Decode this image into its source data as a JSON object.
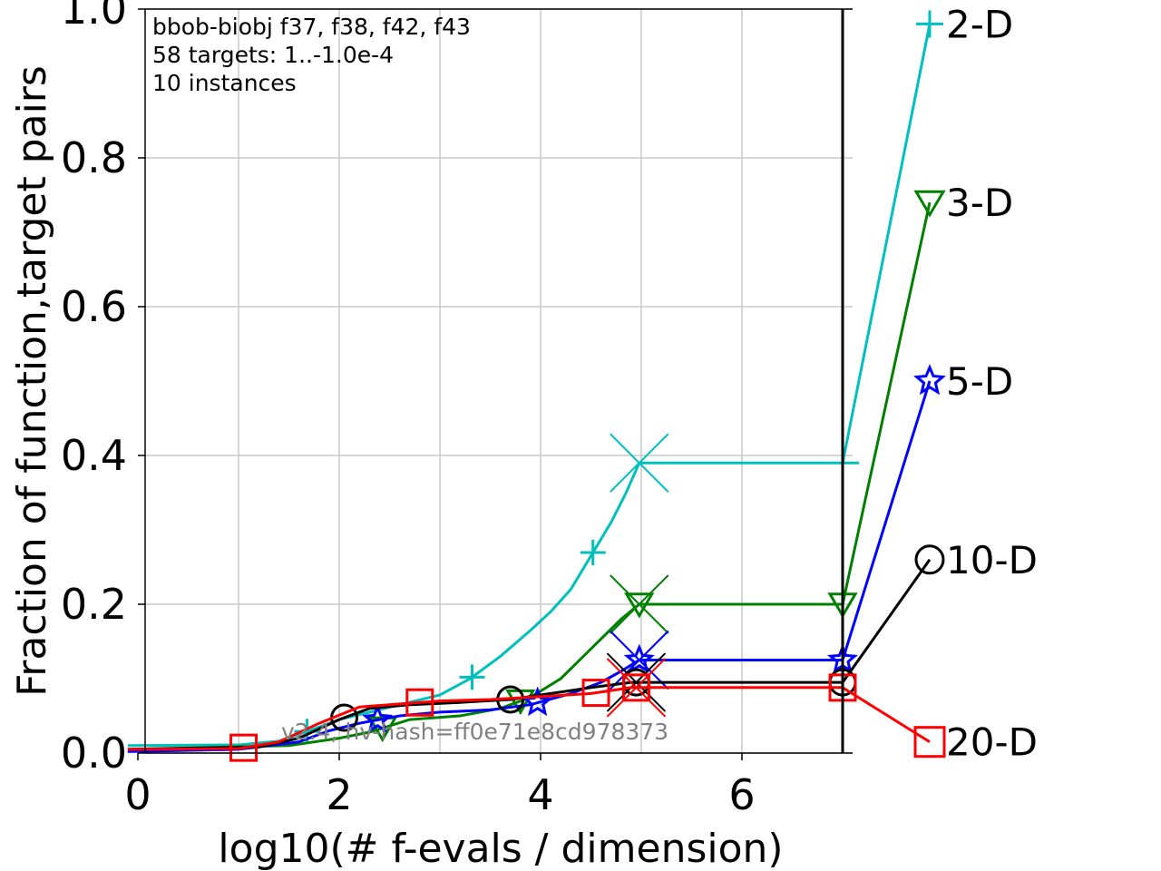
{
  "chart_data": {
    "type": "line",
    "title": "",
    "annotation_lines": [
      "bbob-biobj f37, f38, f42, f43",
      "58 targets: 1..-1.0e-4",
      "10 instances"
    ],
    "hash_text": "v2.4, hv-hash=ff0e71e8cd978373",
    "xlabel": "log10(# f-evals / dimension)",
    "ylabel": "Fraction of function,target pairs",
    "xlim": [
      -0.1,
      7.0
    ],
    "ylim": [
      0.0,
      1.0
    ],
    "xticks": [
      "0",
      "2",
      "4",
      "6"
    ],
    "yticks": [
      "0.0",
      "0.2",
      "0.4",
      "0.6",
      "0.8",
      "1.0"
    ],
    "grid": true,
    "budget_line_x": 7.0,
    "series": [
      {
        "name": "2-D",
        "color": "#00bfbf",
        "marker": "plus",
        "points": [
          [
            -0.1,
            0.01
          ],
          [
            1.0,
            0.011
          ],
          [
            1.4,
            0.016
          ],
          [
            1.7,
            0.03
          ],
          [
            2.0,
            0.045
          ],
          [
            2.3,
            0.055
          ],
          [
            2.6,
            0.065
          ],
          [
            3.0,
            0.078
          ],
          [
            3.3,
            0.1
          ],
          [
            3.6,
            0.13
          ],
          [
            3.9,
            0.165
          ],
          [
            4.1,
            0.19
          ],
          [
            4.3,
            0.22
          ],
          [
            4.5,
            0.265
          ],
          [
            4.7,
            0.31
          ],
          [
            4.85,
            0.35
          ],
          [
            4.98,
            0.39
          ],
          [
            7.0,
            0.39
          ]
        ],
        "markers_x": [
          1.68,
          3.32,
          4.52
        ],
        "final_x": 4.98,
        "final_y": 0.39,
        "end_y": 0.98
      },
      {
        "name": "3-D",
        "color": "#008000",
        "marker": "triangle-down",
        "points": [
          [
            -0.1,
            0.005
          ],
          [
            1.5,
            0.01
          ],
          [
            2.0,
            0.02
          ],
          [
            2.3,
            0.028
          ],
          [
            2.7,
            0.045
          ],
          [
            3.2,
            0.05
          ],
          [
            3.6,
            0.06
          ],
          [
            3.9,
            0.075
          ],
          [
            4.2,
            0.1
          ],
          [
            4.5,
            0.14
          ],
          [
            4.8,
            0.18
          ],
          [
            4.98,
            0.2
          ],
          [
            7.0,
            0.2
          ]
        ],
        "markers_x": [
          2.43,
          3.8,
          4.98,
          7.0
        ],
        "final_x": 4.98,
        "final_y": 0.2,
        "end_y": 0.74
      },
      {
        "name": "5-D",
        "color": "#0000ff",
        "marker": "star",
        "points": [
          [
            -0.1,
            0.002
          ],
          [
            1.0,
            0.005
          ],
          [
            1.6,
            0.015
          ],
          [
            1.9,
            0.03
          ],
          [
            2.2,
            0.04
          ],
          [
            2.6,
            0.05
          ],
          [
            3.0,
            0.055
          ],
          [
            3.5,
            0.058
          ],
          [
            3.9,
            0.065
          ],
          [
            4.3,
            0.08
          ],
          [
            4.6,
            0.095
          ],
          [
            4.8,
            0.11
          ],
          [
            4.98,
            0.125
          ],
          [
            7.0,
            0.125
          ]
        ],
        "markers_x": [
          2.38,
          3.97,
          4.98,
          7.0
        ],
        "final_x": 4.98,
        "final_y": 0.125,
        "end_y": 0.5
      },
      {
        "name": "10-D",
        "color": "#000000",
        "marker": "circle",
        "points": [
          [
            -0.1,
            0.005
          ],
          [
            1.2,
            0.008
          ],
          [
            1.6,
            0.02
          ],
          [
            2.0,
            0.045
          ],
          [
            2.3,
            0.06
          ],
          [
            2.7,
            0.065
          ],
          [
            3.2,
            0.068
          ],
          [
            3.7,
            0.072
          ],
          [
            4.1,
            0.08
          ],
          [
            4.5,
            0.088
          ],
          [
            4.9,
            0.095
          ],
          [
            7.0,
            0.095
          ]
        ],
        "markers_x": [
          2.05,
          3.7,
          4.95,
          7.0
        ],
        "final_x": 4.95,
        "final_y": 0.095,
        "end_y": 0.26
      },
      {
        "name": "20-D",
        "color": "#ff0000",
        "marker": "square",
        "points": [
          [
            -0.1,
            0.005
          ],
          [
            1.0,
            0.006
          ],
          [
            1.4,
            0.015
          ],
          [
            1.8,
            0.04
          ],
          [
            2.2,
            0.062
          ],
          [
            2.6,
            0.066
          ],
          [
            3.0,
            0.07
          ],
          [
            3.5,
            0.072
          ],
          [
            4.0,
            0.076
          ],
          [
            4.5,
            0.08
          ],
          [
            4.9,
            0.088
          ],
          [
            7.0,
            0.088
          ]
        ],
        "markers_x": [
          1.05,
          2.8,
          4.55,
          4.95,
          7.0
        ],
        "final_x": 4.95,
        "final_y": 0.088,
        "end_y": 0.015
      }
    ]
  }
}
